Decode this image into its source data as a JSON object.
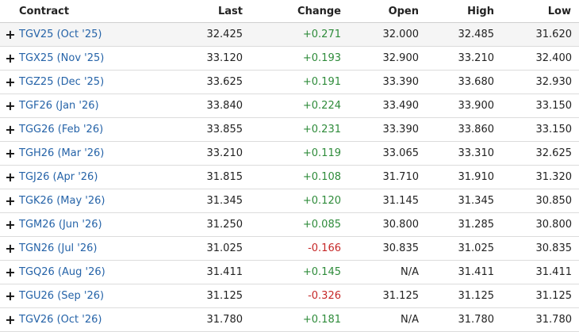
{
  "headers": {
    "contract": "Contract",
    "last": "Last",
    "change": "Change",
    "open": "Open",
    "high": "High",
    "low": "Low"
  },
  "colors": {
    "link": "#2563a8",
    "positive": "#2e8b3a",
    "negative": "#c62828",
    "row_shade": "#f5f5f5"
  },
  "rows": [
    {
      "contract": "TGV25 (Oct '25)",
      "last": "32.425",
      "change": "+0.271",
      "direction": "up",
      "open": "32.000",
      "high": "32.485",
      "low": "31.620"
    },
    {
      "contract": "TGX25 (Nov '25)",
      "last": "33.120",
      "change": "+0.193",
      "direction": "up",
      "open": "32.900",
      "high": "33.210",
      "low": "32.400"
    },
    {
      "contract": "TGZ25 (Dec '25)",
      "last": "33.625",
      "change": "+0.191",
      "direction": "up",
      "open": "33.390",
      "high": "33.680",
      "low": "32.930"
    },
    {
      "contract": "TGF26 (Jan '26)",
      "last": "33.840",
      "change": "+0.224",
      "direction": "up",
      "open": "33.490",
      "high": "33.900",
      "low": "33.150"
    },
    {
      "contract": "TGG26 (Feb '26)",
      "last": "33.855",
      "change": "+0.231",
      "direction": "up",
      "open": "33.390",
      "high": "33.860",
      "low": "33.150"
    },
    {
      "contract": "TGH26 (Mar '26)",
      "last": "33.210",
      "change": "+0.119",
      "direction": "up",
      "open": "33.065",
      "high": "33.310",
      "low": "32.625"
    },
    {
      "contract": "TGJ26 (Apr '26)",
      "last": "31.815",
      "change": "+0.108",
      "direction": "up",
      "open": "31.710",
      "high": "31.910",
      "low": "31.320"
    },
    {
      "contract": "TGK26 (May '26)",
      "last": "31.345",
      "change": "+0.120",
      "direction": "up",
      "open": "31.145",
      "high": "31.345",
      "low": "30.850"
    },
    {
      "contract": "TGM26 (Jun '26)",
      "last": "31.250",
      "change": "+0.085",
      "direction": "up",
      "open": "30.800",
      "high": "31.285",
      "low": "30.800"
    },
    {
      "contract": "TGN26 (Jul '26)",
      "last": "31.025",
      "change": "-0.166",
      "direction": "down",
      "open": "30.835",
      "high": "31.025",
      "low": "30.835"
    },
    {
      "contract": "TGQ26 (Aug '26)",
      "last": "31.411",
      "change": "+0.145",
      "direction": "up",
      "open": "N/A",
      "high": "31.411",
      "low": "31.411"
    },
    {
      "contract": "TGU26 (Sep '26)",
      "last": "31.125",
      "change": "-0.326",
      "direction": "down",
      "open": "31.125",
      "high": "31.125",
      "low": "31.125"
    },
    {
      "contract": "TGV26 (Oct '26)",
      "last": "31.780",
      "change": "+0.181",
      "direction": "up",
      "open": "N/A",
      "high": "31.780",
      "low": "31.780"
    }
  ]
}
